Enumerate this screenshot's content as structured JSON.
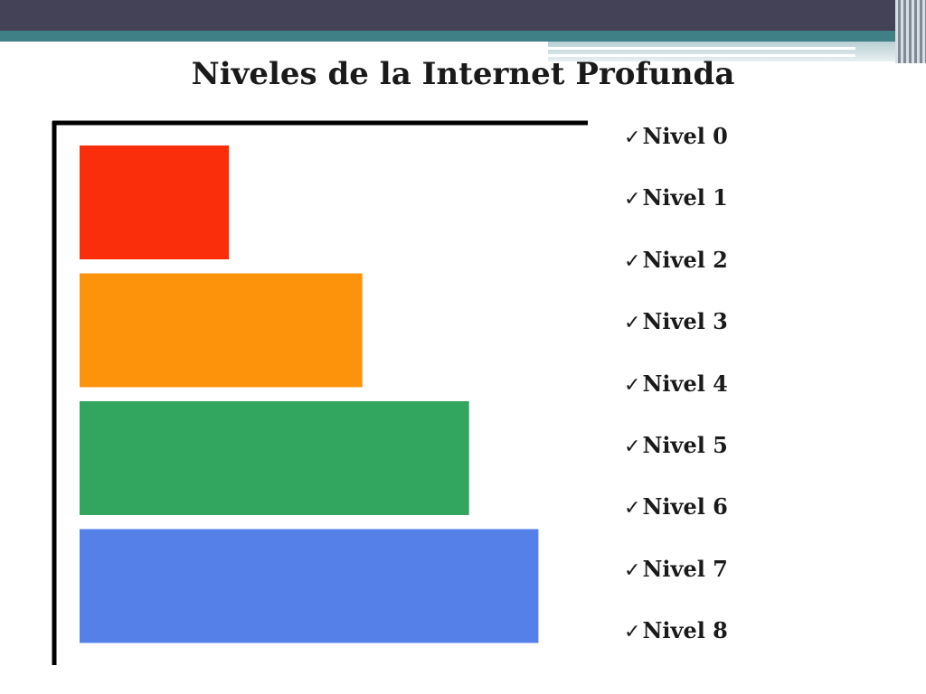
{
  "slide": {
    "title": "Niveles de la Internet Profunda"
  },
  "levels": {
    "check_icon": "check-mark-icon",
    "check_glyph": "✓",
    "items": [
      "Nivel 0",
      "Nivel 1",
      "Nivel 2",
      "Nivel 3",
      "Nivel 4",
      "Nivel 5",
      "Nivel 6",
      "Nivel 7",
      "Nivel 8"
    ]
  },
  "chart_data": {
    "type": "bar",
    "orientation": "horizontal",
    "title": "",
    "xlabel": "",
    "ylabel": "",
    "grid": false,
    "legend": "none",
    "axis_ticks": false,
    "xlim": [
      0,
      100
    ],
    "series": [
      {
        "values": [
          28,
          53,
          73,
          86
        ],
        "colors": [
          "#fb2e0b",
          "#fc930b",
          "#32a65e",
          "#5480e7"
        ]
      }
    ]
  }
}
